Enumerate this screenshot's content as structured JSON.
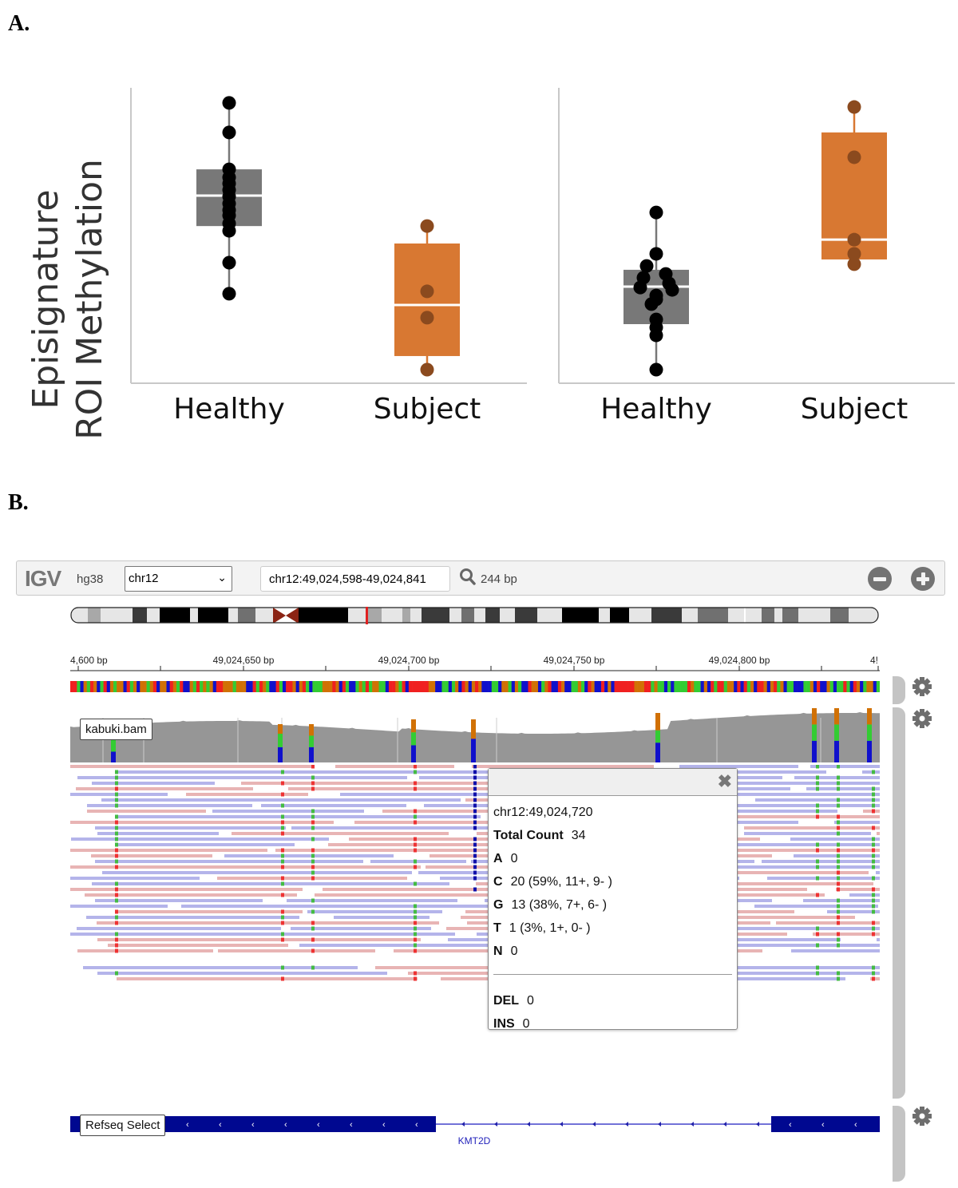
{
  "panel_a_label": "A.",
  "panel_b_label": "B.",
  "chart_data": [
    {
      "type": "box",
      "title": "",
      "ylabel": [
        "Episignature",
        "ROI Methylation"
      ],
      "xlabel": "",
      "ylim": [
        0,
        1
      ],
      "y_units": "relative (no tick labels shown)",
      "categories": [
        "Healthy",
        "Subject"
      ],
      "grid": false,
      "series": [
        {
          "name": "Healthy",
          "color": "#787878",
          "point_color": "#000000",
          "box": {
            "q1": 0.532,
            "median": 0.635,
            "q3": 0.724,
            "whisker_low": 0.303,
            "whisker_high": 0.949
          },
          "points": [
            0.949,
            0.849,
            0.724,
            0.697,
            0.676,
            0.654,
            0.632,
            0.608,
            0.586,
            0.568,
            0.541,
            0.516,
            0.408,
            0.303
          ]
        },
        {
          "name": "Subject",
          "color": "#d87832",
          "point_color": "#8b4a1e",
          "box": {
            "q1": 0.092,
            "median": 0.265,
            "q3": 0.473,
            "whisker_low": 0.046,
            "whisker_high": 0.532
          },
          "points": [
            0.532,
            0.311,
            0.222,
            0.046
          ]
        }
      ]
    },
    {
      "type": "box",
      "title": "",
      "ylabel": "",
      "xlabel": "",
      "ylim": [
        0,
        1
      ],
      "y_units": "relative (no tick labels shown)",
      "categories": [
        "Healthy",
        "Subject"
      ],
      "grid": false,
      "series": [
        {
          "name": "Healthy",
          "color": "#787878",
          "point_color": "#000000",
          "box": {
            "q1": 0.2,
            "median": 0.327,
            "q3": 0.384,
            "whisker_low": 0.046,
            "whisker_high": 0.578
          },
          "points": [
            0.578,
            0.438,
            0.397,
            0.37,
            0.357,
            0.338,
            0.324,
            0.316,
            0.297,
            0.284,
            0.268,
            0.216,
            0.189,
            0.162,
            0.046
          ]
        },
        {
          "name": "Subject",
          "color": "#d87832",
          "point_color": "#8b4a1e",
          "box": {
            "q1": 0.419,
            "median": 0.486,
            "q3": 0.849,
            "whisker_low": 0.4,
            "whisker_high": 0.935
          },
          "points": [
            0.935,
            0.765,
            0.486,
            0.438,
            0.403
          ]
        }
      ]
    }
  ],
  "igv": {
    "logo": "IGV",
    "genome": "hg38",
    "chromosome": "chr12",
    "locus": "chr12:49,024,598-49,024,841",
    "width_label": "244 bp",
    "icons": {
      "search": "search-icon",
      "zoom_out": "minus-circle-icon",
      "zoom_in": "plus-circle-icon",
      "settings": "gear-icon",
      "close": "close-icon"
    },
    "ruler": {
      "labels": [
        "4,600 bp",
        "49,024,650 bp",
        "49,024,700 bp",
        "49,024,750 bp",
        "49,024,800 bp",
        "4!"
      ],
      "start": 49024598,
      "end": 49024841
    },
    "base_colors": {
      "A": "#33cc33",
      "C": "#1010cc",
      "G": "#d17105",
      "T": "#f02020"
    },
    "tracks": {
      "bam": {
        "name": "kabuki.bam"
      },
      "refseq": {
        "name": "Refseq Select",
        "gene": "KMT2D"
      }
    },
    "popup": {
      "position": "chr12:49,024,720",
      "total_label": "Total Count",
      "total": "34",
      "rows": [
        {
          "base": "A",
          "value": "0"
        },
        {
          "base": "C",
          "value": "20 (59%, 11+, 9- )"
        },
        {
          "base": "G",
          "value": "13 (38%, 7+, 6- )"
        },
        {
          "base": "T",
          "value": "1 (3%, 1+, 0- )"
        },
        {
          "base": "N",
          "value": "0"
        }
      ],
      "del_label": "DEL",
      "del": "0",
      "ins_label": "INS",
      "ins": "0"
    }
  }
}
